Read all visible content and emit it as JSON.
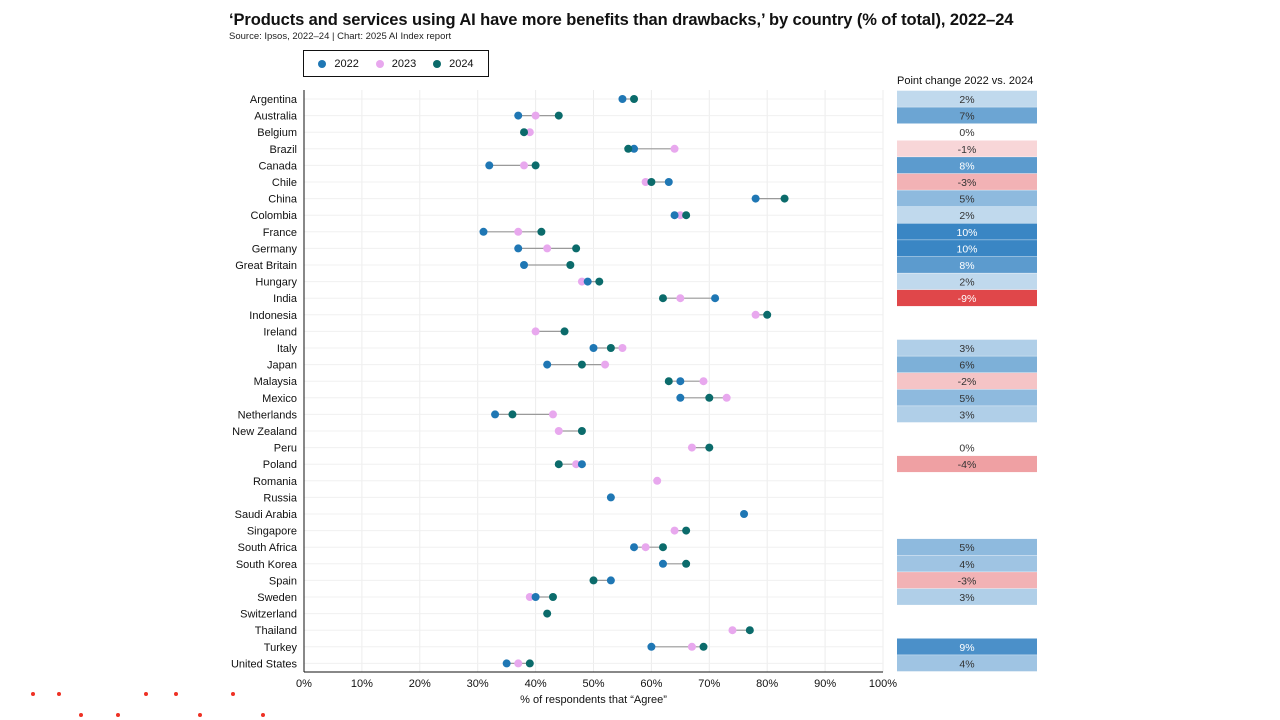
{
  "colors": {
    "s2022": "#1f77b4",
    "s2023": "#e8a8ee",
    "s2024": "#0b6b6b",
    "connector": "#9a9a9a",
    "positive_strong": "#3a86c4",
    "negative_strong": "#e0474a",
    "brand_dots": "#ee3124"
  },
  "decor": {
    "brand_dots_icon": "red-dot-grid-logo-icon"
  },
  "chart_data": {
    "type": "dot_plot",
    "title": "‘Products and services using AI have more benefits than drawbacks,’ by country (% of total), 2022–24",
    "subtitle": "Source: Ipsos, 2022–24 | Chart: 2025 AI Index report",
    "xlabel": "% of respondents that “Agree”",
    "xlim": [
      0,
      100
    ],
    "xticks": [
      "0%",
      "10%",
      "20%",
      "30%",
      "40%",
      "50%",
      "60%",
      "70%",
      "80%",
      "90%",
      "100%"
    ],
    "grid": true,
    "legend_position": "top-left",
    "series_names": [
      "2022",
      "2023",
      "2024"
    ],
    "change_header": "Point change 2022 vs. 2024",
    "rows": [
      {
        "country": "Argentina",
        "v2022": 55,
        "v2023": null,
        "v2024": 57,
        "change": "2%",
        "change_value": 2
      },
      {
        "country": "Australia",
        "v2022": 37,
        "v2023": 40,
        "v2024": 44,
        "change": "7%",
        "change_value": 7
      },
      {
        "country": "Belgium",
        "v2022": null,
        "v2023": 39,
        "v2024": 38,
        "change": "0%",
        "change_value": 0
      },
      {
        "country": "Brazil",
        "v2022": 57,
        "v2023": 64,
        "v2024": 56,
        "change": "-1%",
        "change_value": -1
      },
      {
        "country": "Canada",
        "v2022": 32,
        "v2023": 38,
        "v2024": 40,
        "change": "8%",
        "change_value": 8
      },
      {
        "country": "Chile",
        "v2022": 63,
        "v2023": 59,
        "v2024": 60,
        "change": "-3%",
        "change_value": -3
      },
      {
        "country": "China",
        "v2022": 78,
        "v2023": null,
        "v2024": 83,
        "change": "5%",
        "change_value": 5
      },
      {
        "country": "Colombia",
        "v2022": 64,
        "v2023": 65,
        "v2024": 66,
        "change": "2%",
        "change_value": 2
      },
      {
        "country": "France",
        "v2022": 31,
        "v2023": 37,
        "v2024": 41,
        "change": "10%",
        "change_value": 10
      },
      {
        "country": "Germany",
        "v2022": 37,
        "v2023": 42,
        "v2024": 47,
        "change": "10%",
        "change_value": 10
      },
      {
        "country": "Great Britain",
        "v2022": 38,
        "v2023": null,
        "v2024": 46,
        "change": "8%",
        "change_value": 8
      },
      {
        "country": "Hungary",
        "v2022": 49,
        "v2023": 48,
        "v2024": 51,
        "change": "2%",
        "change_value": 2
      },
      {
        "country": "India",
        "v2022": 71,
        "v2023": 65,
        "v2024": 62,
        "change": "-9%",
        "change_value": -9
      },
      {
        "country": "Indonesia",
        "v2022": null,
        "v2023": 78,
        "v2024": 80,
        "change": "",
        "change_value": null
      },
      {
        "country": "Ireland",
        "v2022": null,
        "v2023": 40,
        "v2024": 45,
        "change": "",
        "change_value": null
      },
      {
        "country": "Italy",
        "v2022": 50,
        "v2023": 55,
        "v2024": 53,
        "change": "3%",
        "change_value": 3
      },
      {
        "country": "Japan",
        "v2022": 42,
        "v2023": 52,
        "v2024": 48,
        "change": "6%",
        "change_value": 6
      },
      {
        "country": "Malaysia",
        "v2022": 65,
        "v2023": 69,
        "v2024": 63,
        "change": "-2%",
        "change_value": -2
      },
      {
        "country": "Mexico",
        "v2022": 65,
        "v2023": 73,
        "v2024": 70,
        "change": "5%",
        "change_value": 5
      },
      {
        "country": "Netherlands",
        "v2022": 33,
        "v2023": 43,
        "v2024": 36,
        "change": "3%",
        "change_value": 3
      },
      {
        "country": "New Zealand",
        "v2022": null,
        "v2023": 44,
        "v2024": 48,
        "change": "",
        "change_value": null
      },
      {
        "country": "Peru",
        "v2022": null,
        "v2023": 67,
        "v2024": 70,
        "change": "0%",
        "change_value": 0
      },
      {
        "country": "Poland",
        "v2022": 48,
        "v2023": 47,
        "v2024": 44,
        "change": "-4%",
        "change_value": -4
      },
      {
        "country": "Romania",
        "v2022": null,
        "v2023": 61,
        "v2024": null,
        "change": "",
        "change_value": null
      },
      {
        "country": "Russia",
        "v2022": 53,
        "v2023": null,
        "v2024": null,
        "change": "",
        "change_value": null
      },
      {
        "country": "Saudi Arabia",
        "v2022": 76,
        "v2023": null,
        "v2024": null,
        "change": "",
        "change_value": null
      },
      {
        "country": "Singapore",
        "v2022": null,
        "v2023": 64,
        "v2024": 66,
        "change": "",
        "change_value": null
      },
      {
        "country": "South Africa",
        "v2022": 57,
        "v2023": 59,
        "v2024": 62,
        "change": "5%",
        "change_value": 5
      },
      {
        "country": "South Korea",
        "v2022": 62,
        "v2023": null,
        "v2024": 66,
        "change": "4%",
        "change_value": 4
      },
      {
        "country": "Spain",
        "v2022": 53,
        "v2023": null,
        "v2024": 50,
        "change": "-3%",
        "change_value": -3
      },
      {
        "country": "Sweden",
        "v2022": 40,
        "v2023": 39,
        "v2024": 43,
        "change": "3%",
        "change_value": 3
      },
      {
        "country": "Switzerland",
        "v2022": null,
        "v2023": null,
        "v2024": 42,
        "change": "",
        "change_value": null
      },
      {
        "country": "Thailand",
        "v2022": null,
        "v2023": 74,
        "v2024": 77,
        "change": "",
        "change_value": null
      },
      {
        "country": "Turkey",
        "v2022": 60,
        "v2023": 67,
        "v2024": 69,
        "change": "9%",
        "change_value": 9
      },
      {
        "country": "United States",
        "v2022": 35,
        "v2023": 37,
        "v2024": 39,
        "change": "4%",
        "change_value": 4
      }
    ]
  }
}
